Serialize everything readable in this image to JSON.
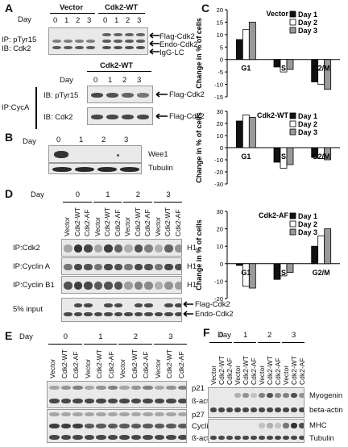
{
  "panels": {
    "A": {
      "label": "A",
      "day_label": "Day",
      "group_vector": "Vector",
      "group_wt": "Cdk2-WT",
      "days": [
        "0",
        "1",
        "2",
        "3"
      ],
      "ip_lines": [
        "IP: pTyr15",
        "IB: Cdk2"
      ],
      "arrows": [
        "Flag-Cdk2",
        "Endo-Cdk2",
        "IgG-LC"
      ],
      "lower_group": "Cdk2-WT",
      "lower_days": [
        "0",
        "1",
        "2",
        "3"
      ],
      "lower_ip": "IP:CycA",
      "lower_ib1": "IB: pTyr15",
      "lower_ib2": "IB: Cdk2",
      "lower_arrow1": "Flag-Cdk2",
      "lower_arrow2": "Flag-Cdk2"
    },
    "B": {
      "label": "B",
      "day_label": "Day",
      "days": [
        "0",
        "1",
        "2",
        "3"
      ],
      "rows": [
        "Wee1",
        "Tubulin"
      ]
    },
    "C": {
      "label": "C",
      "ylabel": "Change in % of cells",
      "legend": [
        "Day 1",
        "Day 2",
        "Day 3"
      ],
      "colors": {
        "day1": "#111111",
        "day2": "#ffffff",
        "day3": "#9a9a9a"
      }
    },
    "D": {
      "label": "D",
      "day_label": "Day",
      "days": [
        "0",
        "1",
        "2",
        "3"
      ],
      "lanes": [
        "Vector",
        "Cdk2-WT",
        "Cdk2-AF"
      ],
      "rows": [
        "IP:Cdk2",
        "IP:Cyclin A",
        "IP:Cyclin B1",
        "5% input"
      ],
      "h1": [
        "H1",
        "H1",
        "H1"
      ],
      "arrows": [
        "Flag-Cdk2",
        "Endo-Cdk2"
      ]
    },
    "E": {
      "label": "E",
      "day_label": "Day",
      "days": [
        "0",
        "1",
        "2",
        "3"
      ],
      "lanes": [
        "Vector",
        "Cdk2-WT",
        "Cdk2-AF"
      ],
      "rows": [
        "p21",
        "ß-actin",
        "p27",
        "Cyclin A",
        "ß-actin"
      ]
    },
    "F": {
      "label": "F",
      "day_label": "Day",
      "days": [
        "0",
        "1",
        "2",
        "3"
      ],
      "lanes": [
        "Vector",
        "Cdk2-WT",
        "Cdk2-AF"
      ],
      "rows": [
        "Myogenin",
        "beta-actin",
        "MHC",
        "Tubulin"
      ]
    }
  },
  "chart_data": [
    {
      "type": "bar",
      "title": "Vector",
      "categories": [
        "G1",
        "S",
        "G2/M"
      ],
      "series": [
        {
          "name": "Day 1",
          "values": [
            8,
            -3,
            -9
          ]
        },
        {
          "name": "Day 2",
          "values": [
            12,
            -5,
            -10
          ]
        },
        {
          "name": "Day 3",
          "values": [
            15,
            -4,
            -12
          ]
        }
      ],
      "ylabel": "Change in % of cells",
      "ylim": [
        -15,
        20
      ],
      "yticks": [
        -15,
        -10,
        -5,
        0,
        5,
        10,
        15,
        20
      ]
    },
    {
      "type": "bar",
      "title": "Cdk2-WT",
      "categories": [
        "G1",
        "S",
        "G2/M"
      ],
      "series": [
        {
          "name": "Day 1",
          "values": [
            22,
            -12,
            -8
          ]
        },
        {
          "name": "Day 2",
          "values": [
            27,
            -17,
            -9
          ]
        },
        {
          "name": "Day 3",
          "values": [
            25,
            -14,
            -10
          ]
        }
      ],
      "ylabel": "Change in % of cells",
      "ylim": [
        -30,
        30
      ],
      "yticks": [
        -30,
        -20,
        -10,
        0,
        10,
        20,
        30
      ]
    },
    {
      "type": "bar",
      "title": "Cdk2-AF",
      "categories": [
        "G1",
        "S",
        "G2/M"
      ],
      "series": [
        {
          "name": "Day 1",
          "values": [
            -1,
            -9,
            10
          ]
        },
        {
          "name": "Day 2",
          "values": [
            -13,
            -7,
            16
          ]
        },
        {
          "name": "Day 3",
          "values": [
            -14,
            -5,
            20
          ]
        }
      ],
      "ylabel": "Change in % of cells",
      "ylim": [
        -20,
        30
      ],
      "yticks": [
        -20,
        -10,
        0,
        10,
        20,
        30
      ]
    }
  ]
}
